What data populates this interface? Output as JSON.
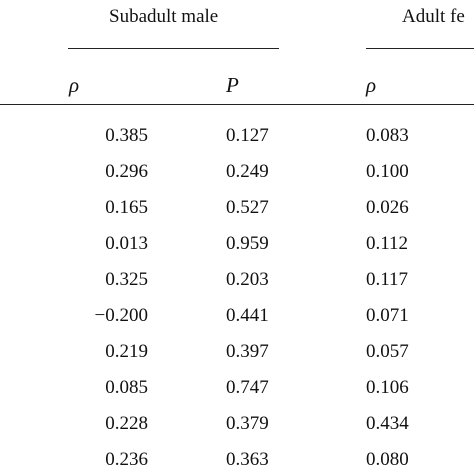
{
  "groups": [
    {
      "label": "Subadult male"
    },
    {
      "label": "Adult fe"
    }
  ],
  "columns": [
    "ρ",
    "P",
    "ρ"
  ],
  "rows": [
    [
      "0.385",
      "0.127",
      "0.083"
    ],
    [
      "0.296",
      "0.249",
      "0.100"
    ],
    [
      "0.165",
      "0.527",
      "0.026"
    ],
    [
      "0.013",
      "0.959",
      "0.112"
    ],
    [
      "0.325",
      "0.203",
      "0.117"
    ],
    [
      "−0.200",
      "0.441",
      "0.071"
    ],
    [
      "0.219",
      "0.397",
      "0.057"
    ],
    [
      "0.085",
      "0.747",
      "0.106"
    ],
    [
      "0.228",
      "0.379",
      "0.434"
    ],
    [
      "0.236",
      "0.363",
      "0.080"
    ]
  ]
}
